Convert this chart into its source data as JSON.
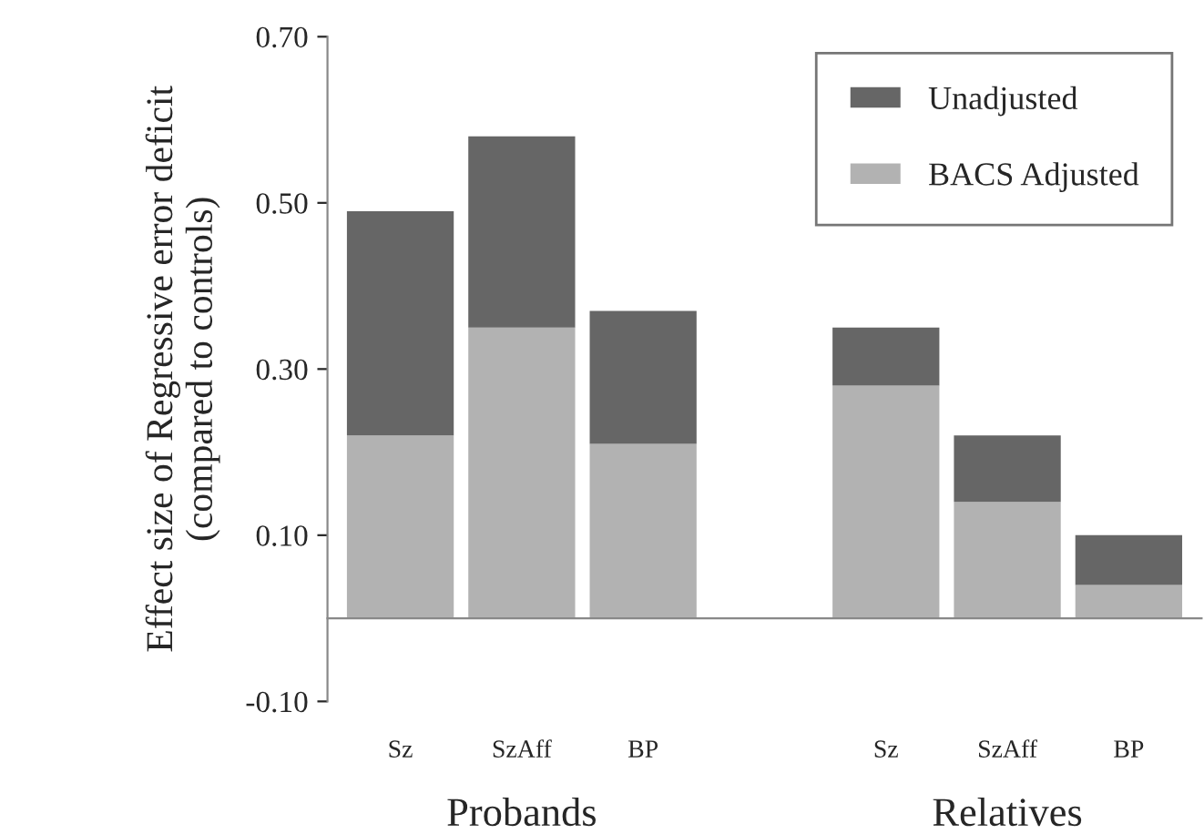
{
  "chart_data": {
    "type": "bar",
    "stacked": true,
    "categories": [
      "Sz",
      "SzAff",
      "BP",
      null,
      "Sz",
      "SzAff",
      "BP"
    ],
    "series": [
      {
        "name": "BACS Adjusted",
        "color": "#b2b2b2",
        "values": [
          0.22,
          0.35,
          0.21,
          null,
          0.28,
          0.14,
          0.04
        ]
      },
      {
        "name": "Unadjusted",
        "color": "#666666",
        "values": [
          0.27,
          0.23,
          0.16,
          null,
          0.07,
          0.08,
          0.06
        ]
      }
    ],
    "ylabel": "Effect size of Regressive error deficit\n(compared to controls)",
    "ylim": [
      -0.1,
      0.7
    ],
    "yticks": [
      {
        "value": -0.1,
        "label": "-0.10"
      },
      {
        "value": 0.1,
        "label": "0.10"
      },
      {
        "value": 0.3,
        "label": "0.30"
      },
      {
        "value": 0.5,
        "label": "0.50"
      },
      {
        "value": 0.7,
        "label": "0.70"
      }
    ],
    "annotations": [
      "Probands",
      "Relatives"
    ],
    "legend": "top right",
    "grid": false
  }
}
